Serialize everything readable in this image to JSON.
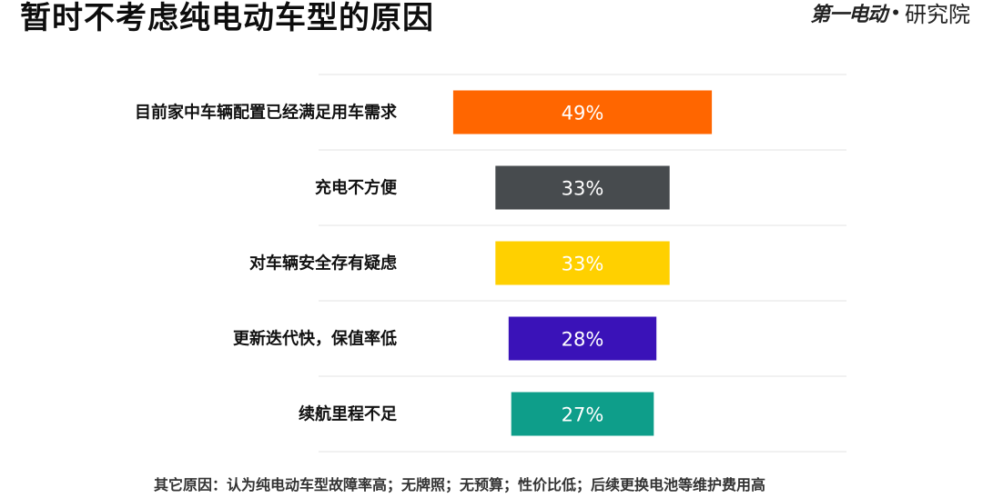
{
  "header": {
    "title": "暂时不考虑纯电动车型的原因",
    "brand_logo": "第一电动",
    "brand_separator": "•",
    "brand_name": "研究院"
  },
  "chart_data": {
    "type": "bar",
    "orientation": "horizontal",
    "title": "暂时不考虑纯电动车型的原因",
    "unit": "%",
    "categories": [
      "目前家中车辆配置已经满足用车需求",
      "充电不方便",
      "对车辆安全存有疑虑",
      "更新迭代快，保值率低",
      "续航里程不足"
    ],
    "values": [
      49,
      33,
      33,
      28,
      27
    ],
    "value_labels": [
      "49%",
      "33%",
      "33%",
      "28%",
      "27%"
    ],
    "bar_colors": [
      "#FF6600",
      "#474B4E",
      "#FFD000",
      "#3A12B8",
      "#0E9E8A"
    ],
    "grid": true,
    "legend": "none"
  },
  "footnote": "其它原因：认为纯电动车型故障率高；无牌照；无预算；性价比低；后续更换电池等维护费用高"
}
